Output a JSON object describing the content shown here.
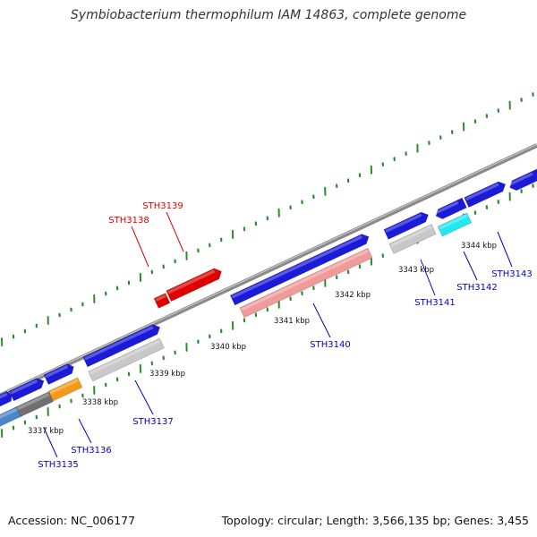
{
  "title": "Symbiobacterium thermophilum IAM 14863, complete genome",
  "footer": {
    "accession": "Accession: NC_006177",
    "summary": "Topology: circular; Length: 3,566,135 bp; Genes: 3,455"
  },
  "colors": {
    "backbone": "#8a8a8a",
    "tick": "#2e8b2e",
    "gene_blue": "#1a1ad8",
    "gene_red": "#e00000",
    "gene_pink": "#f09a9a",
    "gene_gray": "#c8c8c8",
    "gene_orange": "#f59a18",
    "gene_cyan": "#22e8f0",
    "gene_darkgray": "#707070",
    "gene_steel": "#4a86c8",
    "label_blue": "#0000cc",
    "label_red": "#dd0000"
  },
  "scale_labels": [
    "3337 kbp",
    "3338 kbp",
    "3339 kbp",
    "3340 kbp",
    "3341 kbp",
    "3342 kbp",
    "3343 kbp",
    "3344 kbp"
  ],
  "gene_labels": [
    {
      "id": "STH3135",
      "color": "blue"
    },
    {
      "id": "STH3136",
      "color": "blue"
    },
    {
      "id": "STH3137",
      "color": "blue"
    },
    {
      "id": "STH3138",
      "color": "red"
    },
    {
      "id": "STH3139",
      "color": "red"
    },
    {
      "id": "STH3140",
      "color": "blue"
    },
    {
      "id": "STH3141",
      "color": "blue"
    },
    {
      "id": "STH3142",
      "color": "blue"
    },
    {
      "id": "STH3143",
      "color": "blue"
    }
  ]
}
